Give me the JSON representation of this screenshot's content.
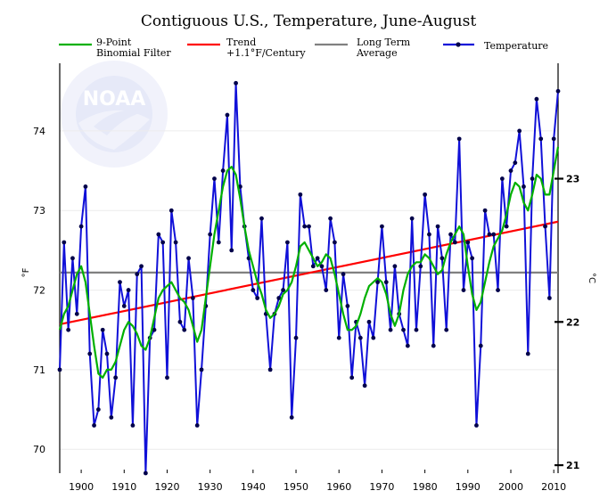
{
  "chart_data": {
    "type": "line",
    "title": "Contiguous U.S., Temperature, June-August",
    "xlim": [
      1895,
      2011
    ],
    "ylim": [
      69.7,
      74.85
    ],
    "ylabel": "°F",
    "y2label": "°C",
    "xticks": [
      "1900",
      "1910",
      "1920",
      "1930",
      "1940",
      "1950",
      "1960",
      "1970",
      "1980",
      "1990",
      "2000",
      "2010"
    ],
    "yticks": [
      "70",
      "71",
      "72",
      "73",
      "74"
    ],
    "y2ticks": [
      "21",
      "22",
      "23"
    ],
    "grid": true,
    "legend_position": "top",
    "logo_text": "NOAA",
    "colors": {
      "temperature": "#1010d8",
      "filter": "#00b000",
      "trend": "#ff0000",
      "average": "#808080"
    },
    "series": [
      {
        "name": "Temperature",
        "x": [
          1895,
          1896,
          1897,
          1898,
          1899,
          1900,
          1901,
          1902,
          1903,
          1904,
          1905,
          1906,
          1907,
          1908,
          1909,
          1910,
          1911,
          1912,
          1913,
          1914,
          1915,
          1916,
          1917,
          1918,
          1919,
          1920,
          1921,
          1922,
          1923,
          1924,
          1925,
          1926,
          1927,
          1928,
          1929,
          1930,
          1931,
          1932,
          1933,
          1934,
          1935,
          1936,
          1937,
          1938,
          1939,
          1940,
          1941,
          1942,
          1943,
          1944,
          1945,
          1946,
          1947,
          1948,
          1949,
          1950,
          1951,
          1952,
          1953,
          1954,
          1955,
          1956,
          1957,
          1958,
          1959,
          1960,
          1961,
          1962,
          1963,
          1964,
          1965,
          1966,
          1967,
          1968,
          1969,
          1970,
          1971,
          1972,
          1973,
          1974,
          1975,
          1976,
          1977,
          1978,
          1979,
          1980,
          1981,
          1982,
          1983,
          1984,
          1985,
          1986,
          1987,
          1988,
          1989,
          1990,
          1991,
          1992,
          1993,
          1994,
          1995,
          1996,
          1997,
          1998,
          1999,
          2000,
          2001,
          2002,
          2003,
          2004,
          2005,
          2006,
          2007,
          2008,
          2009,
          2010,
          2011
        ],
        "values": [
          71.0,
          72.6,
          71.5,
          72.4,
          71.7,
          72.8,
          73.3,
          71.2,
          70.3,
          70.5,
          71.5,
          71.2,
          70.4,
          70.9,
          72.1,
          71.8,
          72.0,
          70.3,
          72.2,
          72.3,
          69.7,
          71.4,
          71.5,
          72.7,
          72.6,
          70.9,
          73.0,
          72.6,
          71.6,
          71.5,
          72.4,
          71.9,
          70.3,
          71.0,
          71.8,
          72.7,
          73.4,
          72.6,
          73.5,
          74.2,
          72.5,
          74.6,
          73.3,
          72.8,
          72.4,
          72.0,
          71.9,
          72.9,
          71.7,
          71.0,
          71.7,
          71.9,
          72.0,
          72.6,
          70.4,
          71.4,
          73.2,
          72.8,
          72.8,
          72.3,
          72.4,
          72.3,
          72.0,
          72.9,
          72.6,
          71.4,
          72.2,
          71.8,
          70.9,
          71.6,
          71.4,
          70.8,
          71.6,
          71.4,
          72.1,
          72.8,
          72.1,
          71.5,
          72.3,
          71.7,
          71.5,
          71.3,
          72.9,
          71.5,
          72.3,
          73.2,
          72.7,
          71.3,
          72.8,
          72.4,
          71.5,
          72.7,
          72.6,
          73.9,
          72.0,
          72.6,
          72.4,
          70.3,
          71.3,
          73.0,
          72.7,
          72.7,
          72.0,
          73.4,
          72.8,
          73.5,
          73.6,
          74.0,
          73.3,
          71.2,
          73.4,
          74.4,
          73.9,
          72.8,
          71.9,
          73.9,
          74.5
        ]
      },
      {
        "name": "9-Point Binomial Filter",
        "x": [
          1895,
          1896,
          1897,
          1898,
          1899,
          1900,
          1901,
          1902,
          1903,
          1904,
          1905,
          1906,
          1907,
          1908,
          1909,
          1910,
          1911,
          1912,
          1913,
          1914,
          1915,
          1916,
          1917,
          1918,
          1919,
          1920,
          1921,
          1922,
          1923,
          1924,
          1925,
          1926,
          1927,
          1928,
          1929,
          1930,
          1931,
          1932,
          1933,
          1934,
          1935,
          1936,
          1937,
          1938,
          1939,
          1940,
          1941,
          1942,
          1943,
          1944,
          1945,
          1946,
          1947,
          1948,
          1949,
          1950,
          1951,
          1952,
          1953,
          1954,
          1955,
          1956,
          1957,
          1958,
          1959,
          1960,
          1961,
          1962,
          1963,
          1964,
          1965,
          1966,
          1967,
          1968,
          1969,
          1970,
          1971,
          1972,
          1973,
          1974,
          1975,
          1976,
          1977,
          1978,
          1979,
          1980,
          1981,
          1982,
          1983,
          1984,
          1985,
          1986,
          1987,
          1988,
          1989,
          1990,
          1991,
          1992,
          1993,
          1994,
          1995,
          1996,
          1997,
          1998,
          1999,
          2000,
          2001,
          2002,
          2003,
          2004,
          2005,
          2006,
          2007,
          2008,
          2009,
          2010,
          2011
        ],
        "values": [
          71.5,
          71.7,
          71.8,
          72.0,
          72.2,
          72.3,
          72.1,
          71.7,
          71.3,
          70.95,
          70.9,
          71.0,
          71.0,
          71.1,
          71.3,
          71.5,
          71.6,
          71.55,
          71.45,
          71.3,
          71.25,
          71.4,
          71.65,
          71.9,
          72.0,
          72.05,
          72.1,
          72.0,
          71.9,
          71.85,
          71.75,
          71.55,
          71.35,
          71.5,
          71.9,
          72.3,
          72.7,
          73.0,
          73.3,
          73.5,
          73.55,
          73.45,
          73.15,
          72.8,
          72.5,
          72.3,
          72.1,
          71.95,
          71.75,
          71.65,
          71.7,
          71.8,
          71.95,
          72.0,
          72.1,
          72.3,
          72.55,
          72.6,
          72.5,
          72.4,
          72.3,
          72.35,
          72.45,
          72.4,
          72.2,
          71.95,
          71.7,
          71.5,
          71.5,
          71.55,
          71.7,
          71.9,
          72.05,
          72.1,
          72.15,
          72.1,
          71.95,
          71.7,
          71.55,
          71.7,
          72.0,
          72.2,
          72.3,
          72.35,
          72.35,
          72.45,
          72.4,
          72.3,
          72.2,
          72.25,
          72.45,
          72.6,
          72.7,
          72.8,
          72.7,
          72.3,
          71.95,
          71.75,
          71.85,
          72.1,
          72.35,
          72.55,
          72.65,
          72.75,
          72.95,
          73.2,
          73.35,
          73.3,
          73.1,
          73.0,
          73.2,
          73.45,
          73.4,
          73.2,
          73.2,
          73.5,
          73.8
        ]
      },
      {
        "name": "Trend +1.1°F/Century",
        "x": [
          1895,
          2011
        ],
        "values": [
          71.57,
          72.86
        ]
      },
      {
        "name": "Long Term Average",
        "x": [
          1895,
          2011
        ],
        "values": [
          72.22,
          72.22
        ]
      }
    ],
    "legend": [
      {
        "key": "filter",
        "lines": [
          "9-Point",
          "Binomial Filter"
        ]
      },
      {
        "key": "trend",
        "lines": [
          "Trend",
          "+1.1°F/Century"
        ]
      },
      {
        "key": "average",
        "lines": [
          "Long Term",
          "Average"
        ]
      },
      {
        "key": "temperature",
        "lines": [
          "Temperature"
        ]
      }
    ]
  }
}
